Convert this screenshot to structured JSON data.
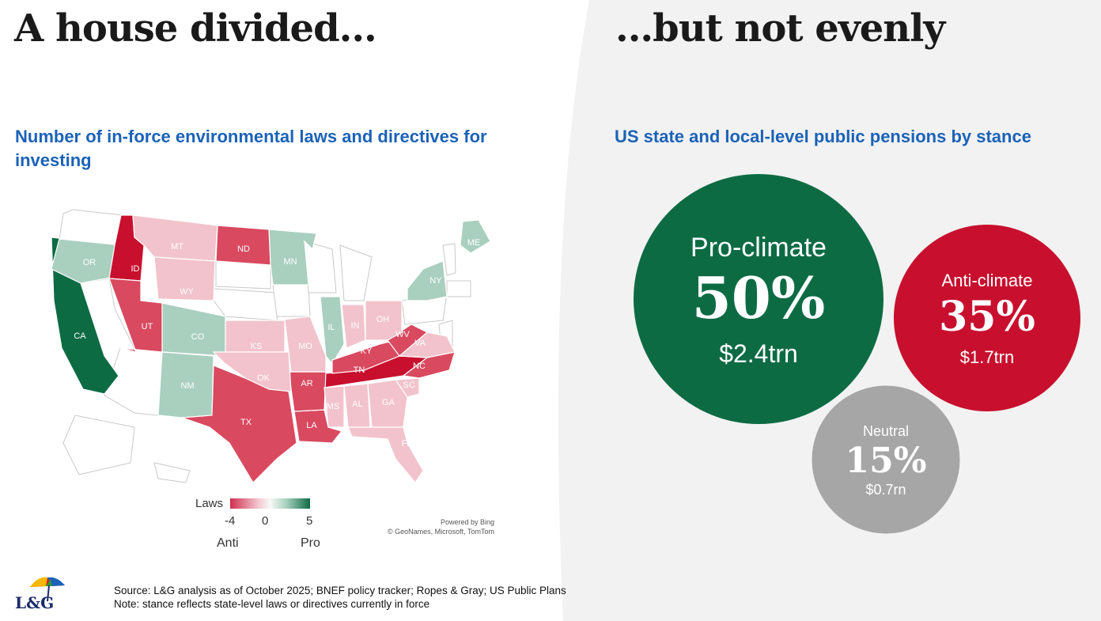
{
  "header": {
    "left_title": "A house divided...",
    "right_title": "...but not evenly"
  },
  "map_panel": {
    "title": "Number of in-force environmental laws and directives for investing",
    "legend": {
      "label": "Laws",
      "min": "-4",
      "mid": "0",
      "max": "5",
      "left_caption": "Anti",
      "right_caption": "Pro"
    },
    "credit_line1": "Powered by Bing",
    "credit_line2": "© GeoNames, Microsoft, TomTom"
  },
  "bubble_panel": {
    "title": "US state and local-level public pensions by stance"
  },
  "colors": {
    "pro_strong": "#0d6b44",
    "pro_light": "#a9cfbf",
    "anti_strong": "#c8102e",
    "anti_mid": "#d9495f",
    "anti_light": "#f2c3cc",
    "neutral_bubble": "#a6a6a6",
    "title_blue": "#1b62b8"
  },
  "chart_data": [
    {
      "type": "choropleth",
      "title": "Number of in-force environmental laws and directives for investing",
      "legend": {
        "label": "Laws",
        "range": [
          -4,
          5
        ],
        "low_label": "Anti",
        "high_label": "Pro"
      },
      "states": [
        {
          "abbr": "CA",
          "value": 5
        },
        {
          "abbr": "OR",
          "value": 2
        },
        {
          "abbr": "IL",
          "value": 2
        },
        {
          "abbr": "MN",
          "value": 1
        },
        {
          "abbr": "CO",
          "value": 1
        },
        {
          "abbr": "NM",
          "value": 1
        },
        {
          "abbr": "NY",
          "value": 1
        },
        {
          "abbr": "ME",
          "value": 1
        },
        {
          "abbr": "ID",
          "value": -4
        },
        {
          "abbr": "TN",
          "value": -4
        },
        {
          "abbr": "UT",
          "value": -3
        },
        {
          "abbr": "TX",
          "value": -3
        },
        {
          "abbr": "LA",
          "value": -3
        },
        {
          "abbr": "ND",
          "value": -2
        },
        {
          "abbr": "AR",
          "value": -2
        },
        {
          "abbr": "KY",
          "value": -2
        },
        {
          "abbr": "WV",
          "value": -2
        },
        {
          "abbr": "NC",
          "value": -2
        },
        {
          "abbr": "MT",
          "value": -1
        },
        {
          "abbr": "WY",
          "value": -1
        },
        {
          "abbr": "KS",
          "value": -1
        },
        {
          "abbr": "OK",
          "value": -1
        },
        {
          "abbr": "MO",
          "value": -1
        },
        {
          "abbr": "IN",
          "value": -1
        },
        {
          "abbr": "OH",
          "value": -1
        },
        {
          "abbr": "VA",
          "value": -1
        },
        {
          "abbr": "SC",
          "value": -1
        },
        {
          "abbr": "MS",
          "value": -1
        },
        {
          "abbr": "AL",
          "value": -1
        },
        {
          "abbr": "GA",
          "value": -1
        },
        {
          "abbr": "FL",
          "value": -1
        }
      ]
    },
    {
      "type": "bubble",
      "title": "US state and local-level public pensions by stance",
      "series": [
        {
          "name": "Pro-climate",
          "percent_label": "50%",
          "percent": 50,
          "amount_label": "$2.4trn",
          "amount_trn": 2.4
        },
        {
          "name": "Anti-climate",
          "percent_label": "35%",
          "percent": 35,
          "amount_label": "$1.7trn",
          "amount_trn": 1.7
        },
        {
          "name": "Neutral",
          "percent_label": "15%",
          "percent": 15,
          "amount_label": "$0.7rn",
          "amount_trn": 0.7
        }
      ]
    }
  ],
  "footer": {
    "logo_text": "L&G",
    "source": "Source: L&G analysis as of October 2025; BNEF policy tracker; Ropes & Gray; US Public Plans",
    "note": "Note: stance reflects state-level laws or directives currently in force"
  }
}
